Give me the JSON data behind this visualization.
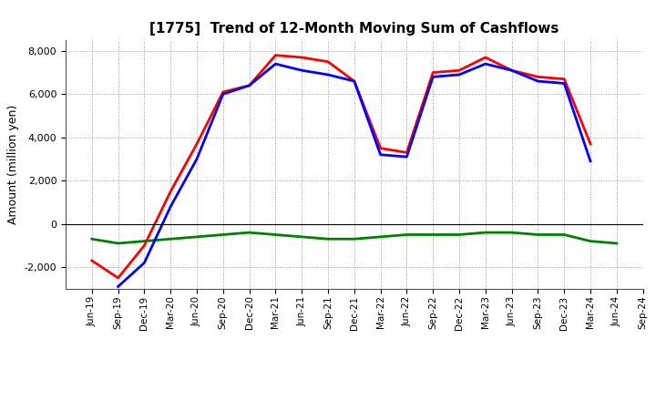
{
  "title": "[1775]  Trend of 12-Month Moving Sum of Cashflows",
  "ylabel": "Amount (million yen)",
  "x_labels": [
    "Jun-19",
    "Sep-19",
    "Dec-19",
    "Mar-20",
    "Jun-20",
    "Sep-20",
    "Dec-20",
    "Mar-21",
    "Jun-21",
    "Sep-21",
    "Dec-21",
    "Mar-22",
    "Jun-22",
    "Sep-22",
    "Dec-22",
    "Mar-23",
    "Jun-23",
    "Sep-23",
    "Dec-23",
    "Mar-24",
    "Jun-24",
    "Sep-24"
  ],
  "operating": [
    -1700,
    -2500,
    -1000,
    1500,
    3700,
    6100,
    6400,
    7800,
    7700,
    7500,
    6600,
    3500,
    3300,
    7000,
    7100,
    7700,
    7100,
    6800,
    6700,
    3700,
    null,
    null
  ],
  "investing": [
    -700,
    -900,
    -800,
    -700,
    -600,
    -500,
    -400,
    -500,
    -600,
    -700,
    -700,
    -600,
    -500,
    -500,
    -500,
    -400,
    -400,
    -500,
    -500,
    -800,
    -900,
    null
  ],
  "free": [
    null,
    -2900,
    -1800,
    800,
    3000,
    6000,
    6400,
    7400,
    7100,
    6900,
    6600,
    3200,
    3100,
    6800,
    6900,
    7400,
    7100,
    6600,
    6500,
    2900,
    null,
    null
  ],
  "ylim": [
    -3000,
    8500
  ],
  "yticks": [
    -2000,
    0,
    2000,
    4000,
    6000,
    8000
  ],
  "line_colors": {
    "operating": "#ff0000",
    "investing": "#008000",
    "free": "#0000ff"
  },
  "bg_color": "#ffffff",
  "plot_bg_color": "#ffffff",
  "grid_color": "#999999",
  "linewidth": 2.0
}
